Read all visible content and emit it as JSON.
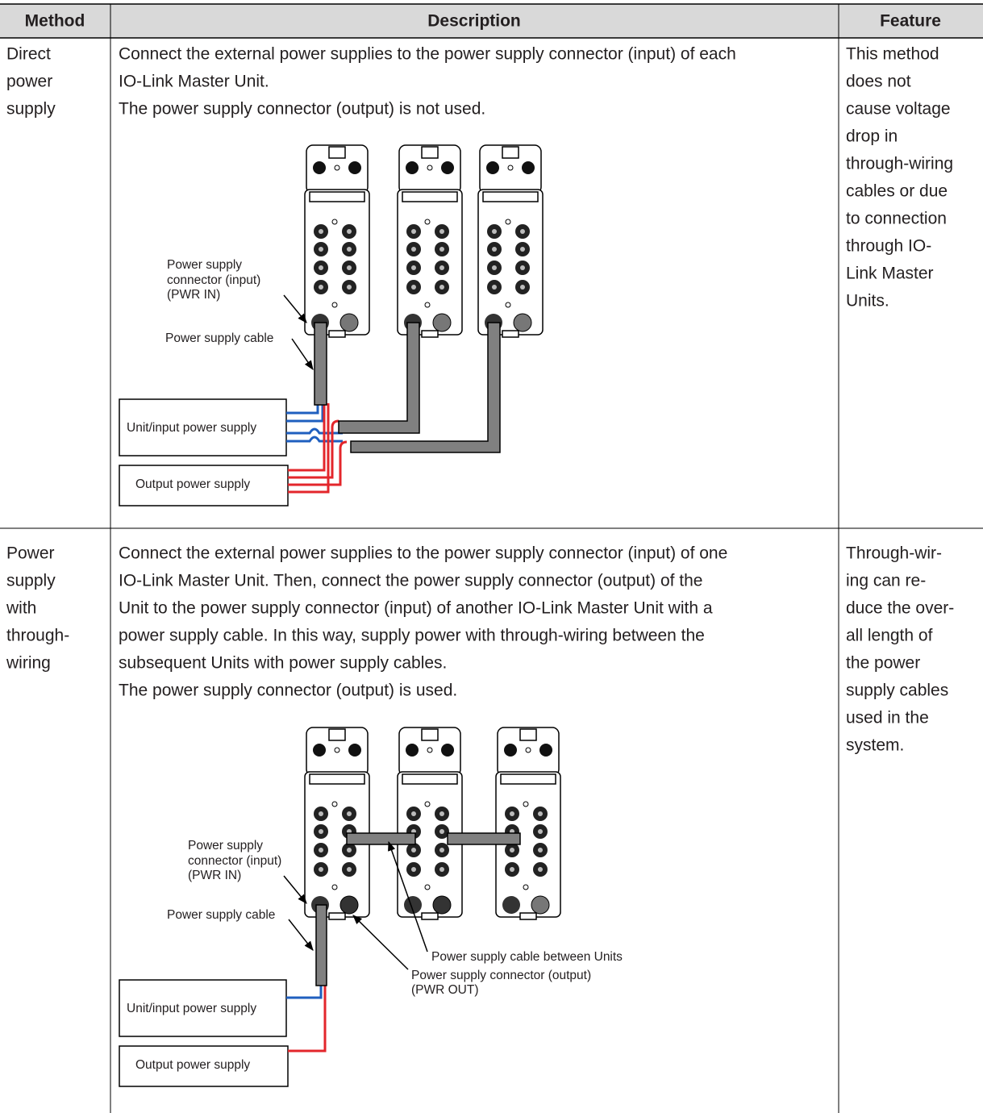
{
  "table": {
    "headers": [
      "Method",
      "Description",
      "Feature"
    ],
    "rows": [
      {
        "method": [
          "Direct",
          "power",
          "supply"
        ],
        "description": [
          "Connect the external power supplies to the power supply connector (input) of each",
          "IO-Link Master Unit.",
          "The power supply connector (output) is not used."
        ],
        "figure_labels": [
          "Power supply",
          "connector (input)",
          "(PWR IN)",
          "Power supply cable",
          "Unit/input power supply",
          "Output power supply"
        ],
        "feature": [
          "This method",
          "does not",
          "cause voltage",
          "drop in",
          "through-wiring",
          "cables or due",
          "to connection",
          "through IO-",
          "Link Master",
          "Units."
        ]
      },
      {
        "method": [
          "Power",
          "supply",
          "with",
          "through-",
          "wiring"
        ],
        "description": [
          "Connect the external power supplies to the power supply connector (input) of one",
          "IO-Link Master Unit. Then, connect the power supply connector (output) of the",
          "Unit to the power supply connector (input) of another IO-Link Master Unit with a",
          "power supply cable. In this way, supply power with through-wiring between the",
          "subsequent Units with power supply cables.",
          "The power supply connector (output) is used."
        ],
        "figure_labels": [
          "Power supply",
          "connector (input)",
          "(PWR IN)",
          "Power supply cable",
          "Power supply cable between Units",
          "Power supply connector (output)",
          "(PWR OUT)",
          "Unit/input power supply",
          "Output power supply"
        ],
        "feature": [
          "Through-wir-",
          "ing can re-",
          "duce the over-",
          "all length of",
          "the power",
          "supply cables",
          "used in the",
          "system."
        ]
      }
    ]
  }
}
